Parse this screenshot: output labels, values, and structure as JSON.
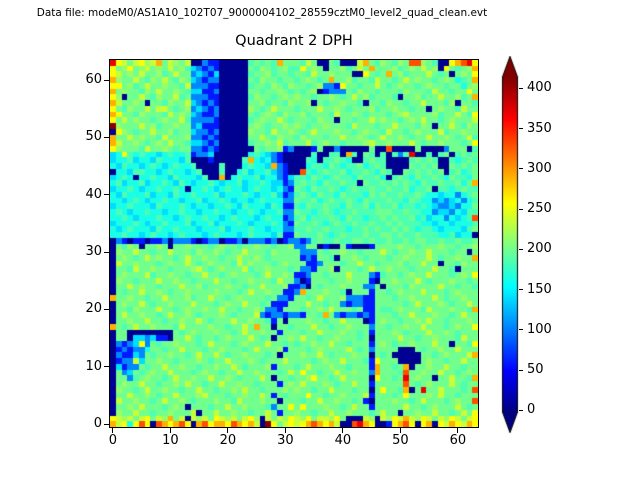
{
  "figure": {
    "data_file_label": "Data file: modeM0/AS1A10_102T07_9000004102_28559cztM0_level2_quad_clean.evt"
  },
  "chart_data": {
    "type": "heatmap",
    "title": "Quadrant 2 DPH",
    "xlabel": "",
    "ylabel": "",
    "x_range": [
      0,
      64
    ],
    "y_range": [
      0,
      64
    ],
    "x_ticks": [
      0,
      10,
      20,
      30,
      40,
      50,
      60
    ],
    "y_ticks": [
      0,
      10,
      20,
      30,
      40,
      50,
      60
    ],
    "colormap": "jet",
    "vmin": -2,
    "vmax": 414,
    "colorbar": {
      "ticks": [
        0,
        50,
        100,
        150,
        200,
        250,
        300,
        350,
        400
      ],
      "extend": "both"
    },
    "grid": {
      "cols": 64,
      "rows": 64,
      "note": "rows listed top (y=63) to bottom (y=0); each char is one detector pixel, mapped to counts via value_palette",
      "value_palette": {
        "0": 5,
        "1": 60,
        "2": 105,
        "3": 140,
        "4": 165,
        "5": 185,
        "6": 200,
        "7": 215,
        "8": 235,
        "9": 255,
        "a": 290,
        "b": 330,
        "c": 370,
        "d": 410
      },
      "rows_top_to_bottom": [
        "c9868978a68768002110000056565a66658600650008a6576576bb765009abc9",
        "96796786768675321210000065765675596760667568 6a66675676867096567a",
        "9867686675686623213000005667566566586676660096 56a675666865606769",
        "a766865768657632122000006576656656765 6a667566586656867665676456a",
        "9967568667665822211000005665765766567221966566865676656766566467",
        "a676657686676533112000006656676565670122265766566657666586656696",
        "97066865766856222110000057665676766566765686756 6650667566866756a",
        "a866760665766832121000006675665766706566766506657665668666570665",
        "9657668688656723212000007656866656668667656667566766566067665866",
        "a966576665867632112000006567657667566658667656665678666675668659",
        "9686766567668522221000005676686566657660665668676656768665676668",
        "d766686756676623111000006765667676566766658666566866657606686576",
        "0976566866756632212000007665866765686667665676658665676668566766",
        "a668676658666722121000006686576657666566866765686676566866765685",
        "a866765676866533212000005667685666856766566678667666865667666569",
        "97666586676566221210000006566712000160020000060 0b000060000266605",
        "34954544345445122300000045432100000500550a5065050525c00505605656",
        "344534435444350001000005a43421000054055654005655 0000565650054565",
        "4354434543454450000500045443a21000455465455645650000656560065656",
        "04435544345443450005004534453210 0b54565564556546 5006565656056456",
        "3454044544354443500a0454453442135546545655465564 0565465565465546",
        "45344534454354344543445344543312565546556550655 6565654655655646a",
        "34454344544540445434544345443421654655654565565 56556455605545655",
        "43544453443544544453444543445312565465546555465 65565565443442456",
        "44345434454434453445434434544422655645655654655 56554654423234245",
        "34454443544454344344543544435411546556554655646 55645545432232446",
        "45434454434454434454434454344522655456545565556 66556554423324355",
        "4454344454434544544345444345441256455565465545 56565564534424345b",
        "34445434454445344534445434445421655654565565565 56565554434434445",
        "43454443544544434445344454434422556556555455656 55656545543444356",
        "44544345443454443454443454443511655565456555655 66565565554453440",
        "02101101120222101220112022212012212565565566565 56556566556556556",
        "06576066760667666567665667665667226601006100016 66676656667665667",
        "07668665668666576676566866657666622265667665666 86566766866656606",
        "0676568676656866766566866765666661216650667656 66566766686566766a",
        "08667666567668656766658676665676661126665668665 66675668660665766",
        "06658667665666786567666856676665622166706665686 67666566686650666",
        "06766685667665668665676665686676112665666866621 56656766866656769",
        "07665666866766566686656676665866201666566766610 66766686566676656",
        "06686766566686675666766566866671120656667666226 06665766668665665",
        "0656686676566766667666568667661 12a666766506661665676668666567666",
        "a66766566866675668665676666562216656866672221166 6566766686566766",
        "06766865667666866656766866561116668665662122116 66665686667656686",
        "066576668665676676686656676221666566768666561165 567666586667665a",
        "06866766568667656667656668212212 21665a6212212166 6566866676656866",
        "06676686656676686566686676651606667665668666016 76656676866566676",
        "a656866766658666676656686a6606656668665667666266 5667668666567669",
        "06600000000656766676656866766166656686667665616 66765666866765666",
        "06603323110668656656766686560667686656676665606 66686656676665866",
        "02123926566766656866656766686656566766866566616 76566766686606659",
        "01212246656686665667666568666716665676666865626 66600065667668666",
        "021132656676656866865667666560666766865666766065 600000665676668a",
        "01228366766566676566866676566686666567668666519 66600006766566866",
        "031226566866766566766865666716665686667665666 1a6656a066766866566",
        "062365676686665676656686676665686966566866766 2a6665b667668665676",
        "06625676656866766866765666860665667966568666609 6656c67660668665a",
        "06766866566768665668667665666167686667656686616 6666b656766686566",
        "076656866766566866566768665666767665668666566069665a06c66866656b",
        "06686676566866678666566766861656669665667666816 66569666768665666",
        "0866766568667656667665866676606665668667665610 66676656866656766b",
        "06676866656760666566866766652669696667665686616 66668665676668656",
        "07668665667666806686676656686166766566866766656 86606676686656869",
        "9878689687a680878698786897086879879688796000870 8798a879868798689",
        "a8949b90ba9ab90ab9aa9ba9a80d968989aba9a800bca90019ab909a098a98a9"
      ]
    }
  }
}
